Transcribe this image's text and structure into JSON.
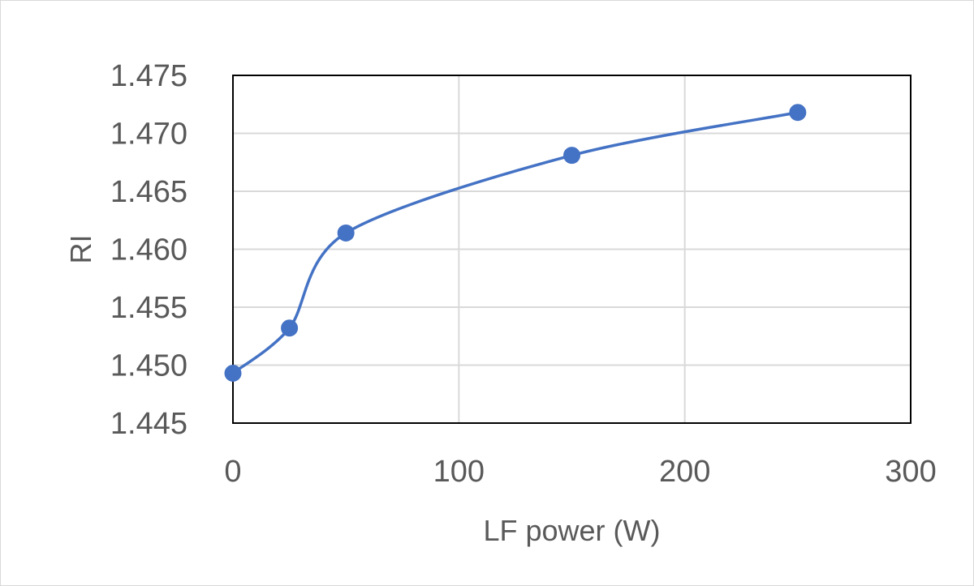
{
  "chart_data": {
    "type": "scatter",
    "title": "",
    "xlabel": "LF power (W)",
    "ylabel": "RI",
    "xlim": [
      0,
      300
    ],
    "ylim": [
      1.445,
      1.475
    ],
    "x_ticks": [
      0,
      100,
      200,
      300
    ],
    "x_tick_labels": [
      "0",
      "100",
      "200",
      "300"
    ],
    "y_ticks": [
      1.445,
      1.45,
      1.455,
      1.46,
      1.465,
      1.47,
      1.475
    ],
    "y_tick_labels": [
      "1.445",
      "1.450",
      "1.455",
      "1.460",
      "1.465",
      "1.470",
      "1.475"
    ],
    "grid": true,
    "smoothed_line": true,
    "legend": "none",
    "series": [
      {
        "color": "#4472c4",
        "points": [
          {
            "x": 0,
            "y": 1.4493
          },
          {
            "x": 25,
            "y": 1.4532
          },
          {
            "x": 50,
            "y": 1.4614
          },
          {
            "x": 150,
            "y": 1.4681
          },
          {
            "x": 250,
            "y": 1.4718
          }
        ]
      }
    ]
  }
}
